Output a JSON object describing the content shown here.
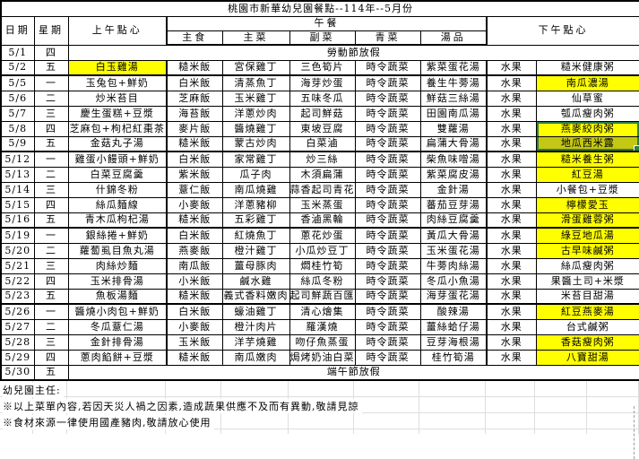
{
  "title": "桃園市新華幼兒園餐點--114年--5月份",
  "header": {
    "date": "日期",
    "weekday": "星期",
    "morning_snack": "上午點心",
    "lunch": "午餐",
    "staple": "主食",
    "main_dish": "主菜",
    "side_dish": "副菜",
    "vegetable": "青菜",
    "soup": "湯品",
    "afternoon_snack": "下午點心"
  },
  "colors": {
    "highlight": "#ffff00",
    "highlight_dimmed": "#c4c714",
    "selection_border": "#2e7d46"
  },
  "rows": [
    {
      "date": "5/1",
      "weekday": "四",
      "holiday": "勞動節放假"
    },
    {
      "date": "5/2",
      "weekday": "五",
      "morning": "白玉雞湯",
      "morning_hl": true,
      "staple": "糙米飯",
      "main": "宮保雞丁",
      "side": "三色筍片",
      "veg": "時令蔬菜",
      "soup": "紫菜蛋花湯",
      "fruit": "水果",
      "snack": "糙米健康粥",
      "week_end": true
    },
    {
      "date": "5/5",
      "weekday": "一",
      "morning": "玉兔包+鮮奶",
      "staple": "白米飯",
      "main": "清蒸魚丁",
      "side": "海芽炒蛋",
      "veg": "時令蔬菜",
      "soup": "養生牛蒡湯",
      "fruit": "水果",
      "snack": "南瓜濃湯",
      "snack_hl": true
    },
    {
      "date": "5/6",
      "weekday": "二",
      "morning": "炒米苔目",
      "staple": "芝麻飯",
      "main": "玉米雞丁",
      "side": "五味冬瓜",
      "veg": "時令蔬菜",
      "soup": "鮮菇三絲湯",
      "fruit": "水果",
      "snack": "仙草蜜"
    },
    {
      "date": "5/7",
      "weekday": "三",
      "morning": "慶生蛋糕+豆漿",
      "staple": "海苔飯",
      "main": "洋蔥炒肉",
      "side": "起司鮮菇",
      "veg": "時令蔬菜",
      "soup": "田園南瓜湯",
      "fruit": "水果",
      "snack": "瓠瓜瘦肉粥"
    },
    {
      "date": "5/8",
      "weekday": "四",
      "morning": "芝麻包+枸杞紅棗茶",
      "staple": "麥片飯",
      "main": "醬燒雞丁",
      "side": "東坡豆腐",
      "veg": "時令蔬菜",
      "soup": "雙蘿湯",
      "fruit": "水果",
      "snack": "燕麥絞肉粥",
      "snack_hl": true,
      "snack_sel": "top"
    },
    {
      "date": "5/9",
      "weekday": "五",
      "morning": "金菇丸子湯",
      "staple": "糙米飯",
      "main": "蒙古炒肉",
      "side": "白菜滷",
      "veg": "時令蔬菜",
      "soup": "扁蒲大骨湯",
      "fruit": "水果",
      "snack": "地瓜西米露",
      "snack_hl": "dark",
      "snack_sel": "bottom",
      "week_end": true
    },
    {
      "date": "5/12",
      "weekday": "一",
      "morning": "雞蛋小饅頭+鮮奶",
      "staple": "白米飯",
      "main": "家常雞丁",
      "side": "炒三絲",
      "veg": "時令蔬菜",
      "soup": "柴魚味噌湯",
      "fruit": "水果",
      "snack": "糙米養生粥",
      "snack_hl": true
    },
    {
      "date": "5/13",
      "weekday": "二",
      "morning": "白菜豆腐羹",
      "staple": "紫米飯",
      "main": "瓜子肉",
      "side": "木須扁蒲",
      "veg": "時令蔬菜",
      "soup": "紫菜腐皮湯",
      "fruit": "水果",
      "snack": "紅豆湯",
      "snack_hl": true
    },
    {
      "date": "5/14",
      "weekday": "三",
      "morning": "什錦冬粉",
      "staple": "薏仁飯",
      "main": "南瓜燒雞",
      "side": "蒜香起司青花菜",
      "side_small": true,
      "veg": "時令蔬菜",
      "soup": "金針湯",
      "fruit": "水果",
      "snack": "小餐包+豆漿"
    },
    {
      "date": "5/15",
      "weekday": "四",
      "morning": "絲瓜麵線",
      "staple": "小麥飯",
      "main": "洋蔥豬柳",
      "side": "玉米蒸蛋",
      "veg": "時令蔬菜",
      "soup": "蕃茄豆芽湯",
      "fruit": "水果",
      "snack": "檸檬愛玉",
      "snack_hl": true
    },
    {
      "date": "5/16",
      "weekday": "五",
      "morning": "青木瓜枸杞湯",
      "staple": "糙米飯",
      "main": "五彩雞丁",
      "side": "香滷黑輪",
      "veg": "時令蔬菜",
      "soup": "肉絲豆腐羹",
      "fruit": "水果",
      "snack": "滑蛋雞蓉粥",
      "snack_hl": true,
      "week_end": true
    },
    {
      "date": "5/19",
      "weekday": "一",
      "morning": "銀絲捲+鮮奶",
      "staple": "白米飯",
      "main": "紅燒魚丁",
      "side": "蔥花炒蛋",
      "veg": "時令蔬菜",
      "soup": "黃瓜大骨湯",
      "fruit": "水果",
      "snack": "綠豆地瓜湯",
      "snack_hl": true
    },
    {
      "date": "5/20",
      "weekday": "二",
      "morning": "蘿蔔虱目魚丸湯",
      "staple": "燕麥飯",
      "main": "橙汁雞丁",
      "side": "小瓜炒豆丁",
      "veg": "時令蔬菜",
      "soup": "玉米蛋花湯",
      "fruit": "水果",
      "snack": "古早味鹹粥",
      "snack_hl": true
    },
    {
      "date": "5/21",
      "weekday": "三",
      "morning": "肉絲炒麵",
      "staple": "南瓜飯",
      "main": "薑母豚肉",
      "side": "燜桂竹筍",
      "veg": "時令蔬菜",
      "soup": "牛蒡肉絲湯",
      "fruit": "水果",
      "snack": "絲瓜瘦肉粥"
    },
    {
      "date": "5/22",
      "weekday": "四",
      "morning": "玉米排骨湯",
      "staple": "小米飯",
      "main": "鹹水雞",
      "side": "絲瓜冬粉",
      "veg": "時令蔬菜",
      "soup": "冬瓜小魚湯",
      "fruit": "水果",
      "snack": "果醬土司+米漿"
    },
    {
      "date": "5/23",
      "weekday": "五",
      "morning": "魚板湯麵",
      "staple": "糙米飯",
      "main": "義式香料嫩肉",
      "side": "起司鮮蔬百匯",
      "veg": "時令蔬菜",
      "soup": "海芽蛋花湯",
      "fruit": "水果",
      "snack": "米苔目甜湯",
      "week_end": true
    },
    {
      "date": "5/26",
      "weekday": "一",
      "morning": "醬燒小肉包+鮮奶",
      "staple": "白米飯",
      "main": "蠔油雞丁",
      "side": "清心燴集",
      "veg": "時令蔬菜",
      "soup": "酸辣湯",
      "fruit": "水果",
      "snack": "紅豆燕麥湯",
      "snack_hl": true
    },
    {
      "date": "5/27",
      "weekday": "二",
      "morning": "冬瓜薏仁湯",
      "staple": "小麥飯",
      "main": "橙汁肉片",
      "side": "羅漢燒",
      "veg": "時令蔬菜",
      "soup": "薑絲蛤仔湯",
      "fruit": "水果",
      "snack": "台式鹹粥"
    },
    {
      "date": "5/28",
      "weekday": "三",
      "morning": "金針排骨湯",
      "staple": "玉米飯",
      "main": "洋芋燒雞",
      "side": "吻仔魚蒸蛋",
      "veg": "時令蔬菜",
      "soup": "豆芽海根湯",
      "fruit": "水果",
      "snack": "香菇瘦肉粥",
      "snack_hl": true
    },
    {
      "date": "5/29",
      "weekday": "四",
      "morning": "蔥肉餡餅+豆漿",
      "staple": "糙米飯",
      "main": "南瓜嫩肉",
      "side": "焗烤奶油白菜",
      "veg": "時令蔬菜",
      "soup": "桂竹筍湯",
      "fruit": "水果",
      "snack": "八寶甜湯",
      "snack_hl": true
    },
    {
      "date": "5/30",
      "weekday": "五",
      "holiday": "端午節放假",
      "week_end": true
    }
  ],
  "footer": {
    "director_label": "幼兒園主任:",
    "notes": [
      "※以上菜單內容,若因天災人禍之因素,造成蔬果供應不及而有異動,敬請見諒",
      "※食材來源一律使用國產豬肉,敬請放心使用"
    ]
  }
}
